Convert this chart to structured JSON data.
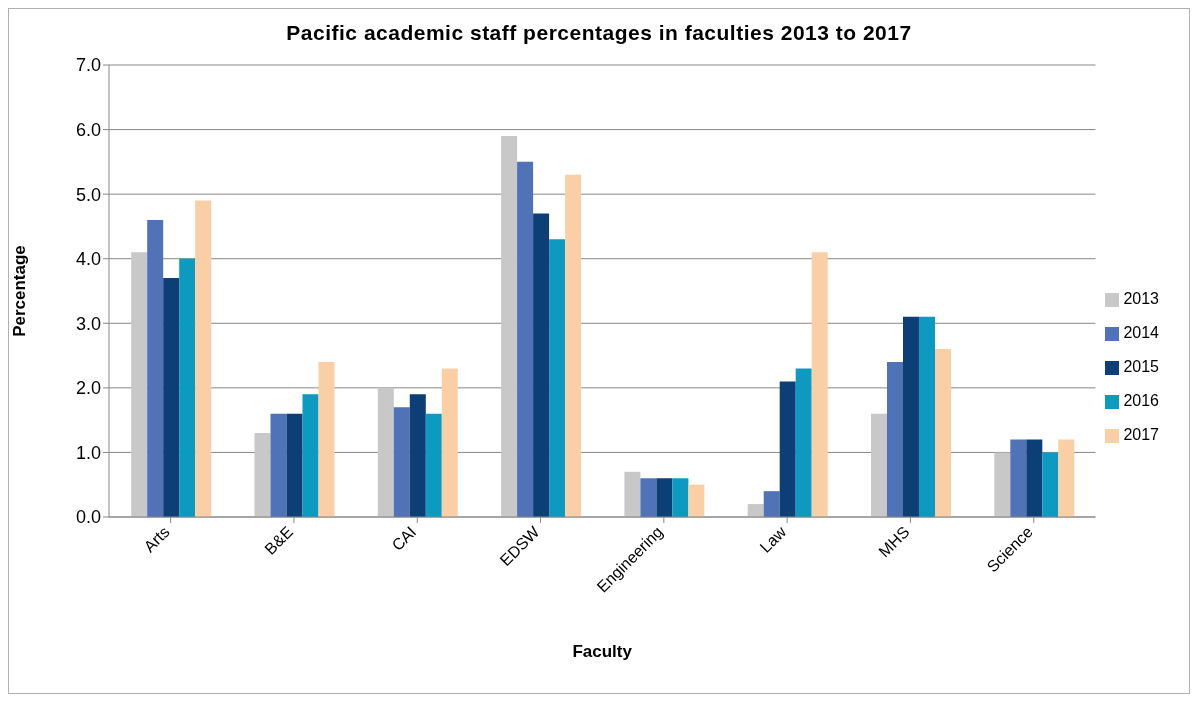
{
  "chart_data": {
    "type": "bar",
    "title": "Pacific academic staff percentages in faculties 2013 to 2017",
    "xlabel": "Faculty",
    "ylabel": "Percentage",
    "categories": [
      "Arts",
      "B&E",
      "CAI",
      "EDSW",
      "Engineering",
      "Law",
      "MHS",
      "Science"
    ],
    "series": [
      {
        "name": "2013",
        "color": "#c8c8c8",
        "values": [
          4.1,
          1.3,
          2.0,
          5.9,
          0.7,
          0.2,
          1.6,
          1.0
        ]
      },
      {
        "name": "2014",
        "color": "#4f73b6",
        "values": [
          4.6,
          1.6,
          1.7,
          5.5,
          0.6,
          0.4,
          2.4,
          1.2
        ]
      },
      {
        "name": "2015",
        "color": "#0c3f76",
        "values": [
          3.7,
          1.6,
          1.9,
          4.7,
          0.6,
          2.1,
          3.1,
          1.2
        ]
      },
      {
        "name": "2016",
        "color": "#0d9ac1",
        "values": [
          4.0,
          1.9,
          1.6,
          4.3,
          0.6,
          2.3,
          3.1,
          1.0
        ]
      },
      {
        "name": "2017",
        "color": "#fbcfa6",
        "values": [
          4.9,
          2.4,
          2.3,
          5.3,
          0.5,
          4.1,
          2.6,
          1.2
        ]
      }
    ],
    "ylim": [
      0,
      7
    ],
    "yticks": [
      {
        "value": 0,
        "label": "0.0"
      },
      {
        "value": 1,
        "label": "1.0"
      },
      {
        "value": 2,
        "label": "2.0"
      },
      {
        "value": 3,
        "label": "3.0"
      },
      {
        "value": 4,
        "label": "4.0"
      },
      {
        "value": 5,
        "label": "5.0"
      },
      {
        "value": 6,
        "label": "6.0"
      },
      {
        "value": 7,
        "label": "7.0"
      }
    ],
    "grid": "y",
    "legend": "right"
  }
}
